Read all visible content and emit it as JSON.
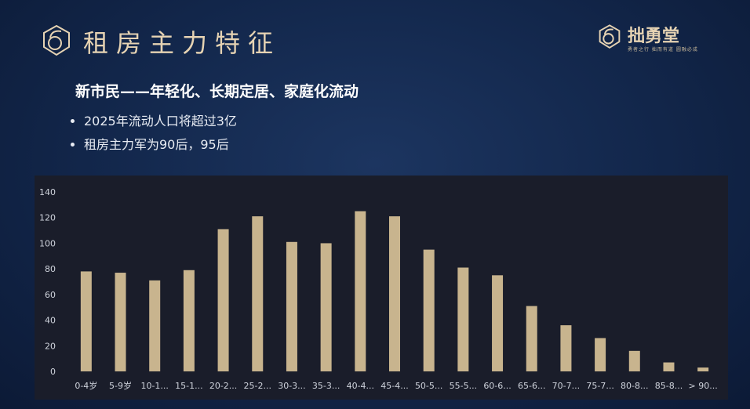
{
  "header": {
    "title": "租房主力特征",
    "brand_name": "拙勇堂",
    "brand_tagline": "勇者之行 拙而有道 圆融必成"
  },
  "content": {
    "subtitle": "新市民——年轻化、长期定居、家庭化流动",
    "bullets": [
      "2025年流动人口将超过3亿",
      "租房主力军为90后，95后"
    ]
  },
  "colors": {
    "accent": "#e6d3b3",
    "bar": "#c8b48e",
    "background": "#12264a",
    "panel": "#1a1d2a"
  },
  "icons": [
    "logo-mark-icon",
    "brand-logo-icon"
  ],
  "chart_data": {
    "type": "bar",
    "categories": [
      "0-4岁",
      "5-9岁",
      "10-1...",
      "15-1...",
      "20-2...",
      "25-2...",
      "30-3...",
      "35-3...",
      "40-4...",
      "45-4...",
      "50-5...",
      "55-5...",
      "60-6...",
      "65-6...",
      "70-7...",
      "75-7...",
      "80-8...",
      "85-8...",
      "> 90..."
    ],
    "values": [
      78,
      77,
      71,
      79,
      111,
      121,
      101,
      100,
      125,
      121,
      95,
      81,
      75,
      51,
      36,
      26,
      16,
      7,
      3
    ],
    "ylim": [
      0,
      140
    ],
    "yticks": [
      "0",
      "20",
      "40",
      "60",
      "80",
      "100",
      "120",
      "140"
    ],
    "grid": false,
    "legend": "none"
  }
}
